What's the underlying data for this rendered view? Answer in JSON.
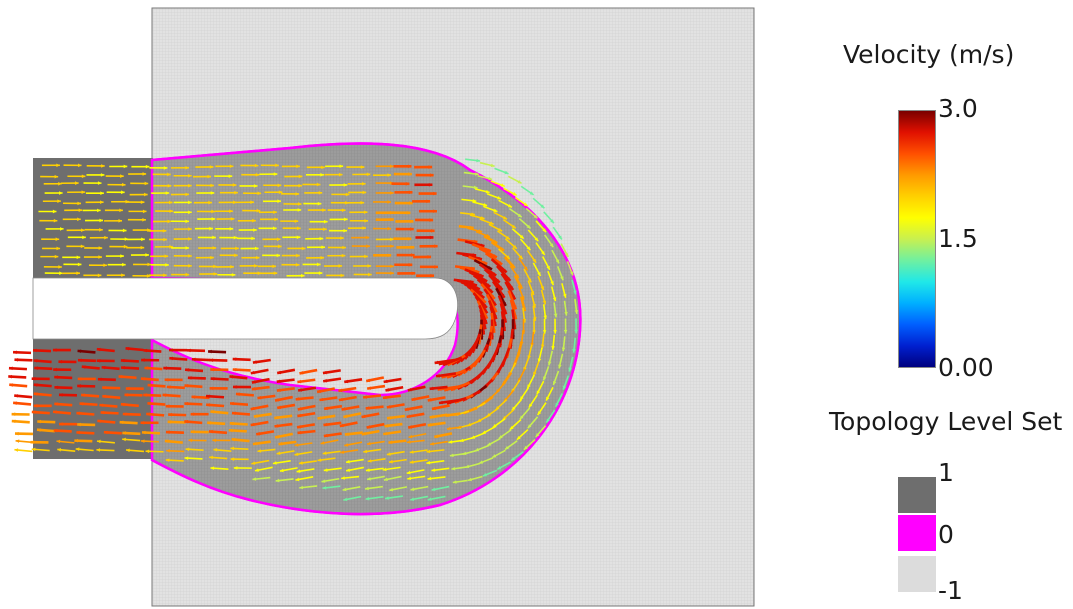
{
  "velocity_legend": {
    "title": "Velocity (m/s)",
    "max_label": "3.0",
    "mid_label": "1.5",
    "min_label": "0.00",
    "colormap": [
      "#00007f",
      "#0020d0",
      "#0060ff",
      "#00b0ff",
      "#20e8e8",
      "#70f0a0",
      "#c8f050",
      "#ffff00",
      "#ffd000",
      "#ff9a00",
      "#ff5000",
      "#e01000",
      "#7a0000"
    ]
  },
  "topology_legend": {
    "title": "Topology Level Set",
    "levels": [
      {
        "label": "1",
        "color": "#6e6e6e"
      },
      {
        "label": "0",
        "color": "#ff00ff"
      },
      {
        "label": "-1",
        "color": "#dcdcdc"
      }
    ]
  },
  "domain_colors": {
    "solid_region": "#dcdcdc",
    "fluid_region": "#9a9a9a",
    "inlet_outlet_pipe": "#6e6e6e",
    "interface": "#ff00ff",
    "grid_line": "#c8c8c8"
  }
}
